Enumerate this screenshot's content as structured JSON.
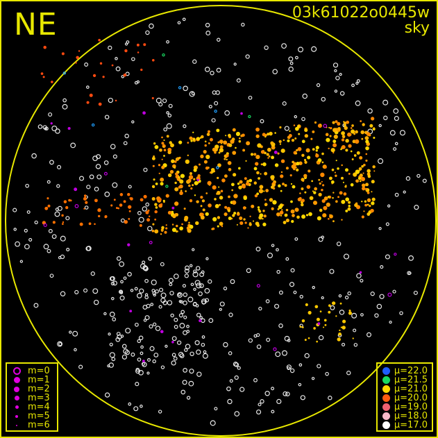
{
  "direction_label": "NE",
  "title": {
    "frame_id": "03k61022o0445w",
    "subtitle": "sky"
  },
  "colors": {
    "frame": "#e8e800",
    "background": "#000000",
    "magnitude_symbol": "#e000e0"
  },
  "magnitude_legend": [
    {
      "label": "m=0",
      "symbol": "ring"
    },
    {
      "label": "m=1",
      "symbol": "dot"
    },
    {
      "label": "m=2",
      "symbol": "dot"
    },
    {
      "label": "m=3",
      "symbol": "dot"
    },
    {
      "label": "m=4",
      "symbol": "dot"
    },
    {
      "label": "m=5",
      "symbol": "dot"
    },
    {
      "label": "m=6",
      "symbol": "dot"
    }
  ],
  "surface_brightness_legend": [
    {
      "label": "μ=22.0",
      "color": "#1e5cff"
    },
    {
      "label": "μ=21.5",
      "color": "#18d860"
    },
    {
      "label": "μ=21.0",
      "color": "#ffd800"
    },
    {
      "label": "μ=20.0",
      "color": "#ff5a10"
    },
    {
      "label": "μ=19.0",
      "color": "#f06070"
    },
    {
      "label": "μ=18.0",
      "color": "#f8b8c8"
    },
    {
      "label": "μ=17.0",
      "color": "#ffffff"
    }
  ]
}
